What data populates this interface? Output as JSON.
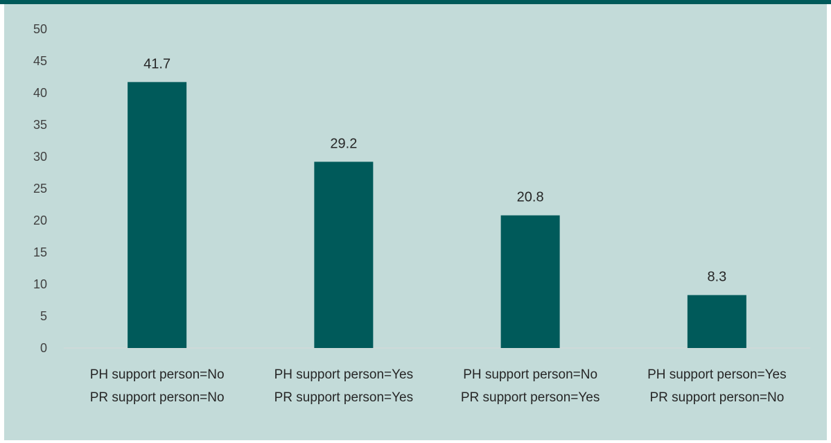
{
  "chart_data": {
    "type": "bar",
    "title": "",
    "xlabel": "",
    "ylabel": "",
    "ylim": [
      0,
      50
    ],
    "yticks": [
      0,
      5,
      10,
      15,
      20,
      25,
      30,
      35,
      40,
      45,
      50
    ],
    "grid": false,
    "legend": "none",
    "bar_color": "#005a5a",
    "categories": [
      [
        "PH support person=No",
        "PR support person=No"
      ],
      [
        "PH support person=Yes",
        "PR support person=Yes"
      ],
      [
        "PH support person=No",
        "PR support person=Yes"
      ],
      [
        "PH support person=Yes",
        "PR support person=No"
      ]
    ],
    "values": [
      41.7,
      29.2,
      20.8,
      8.3
    ],
    "data_labels": [
      "41.7",
      "29.2",
      "20.8",
      "8.3"
    ]
  }
}
